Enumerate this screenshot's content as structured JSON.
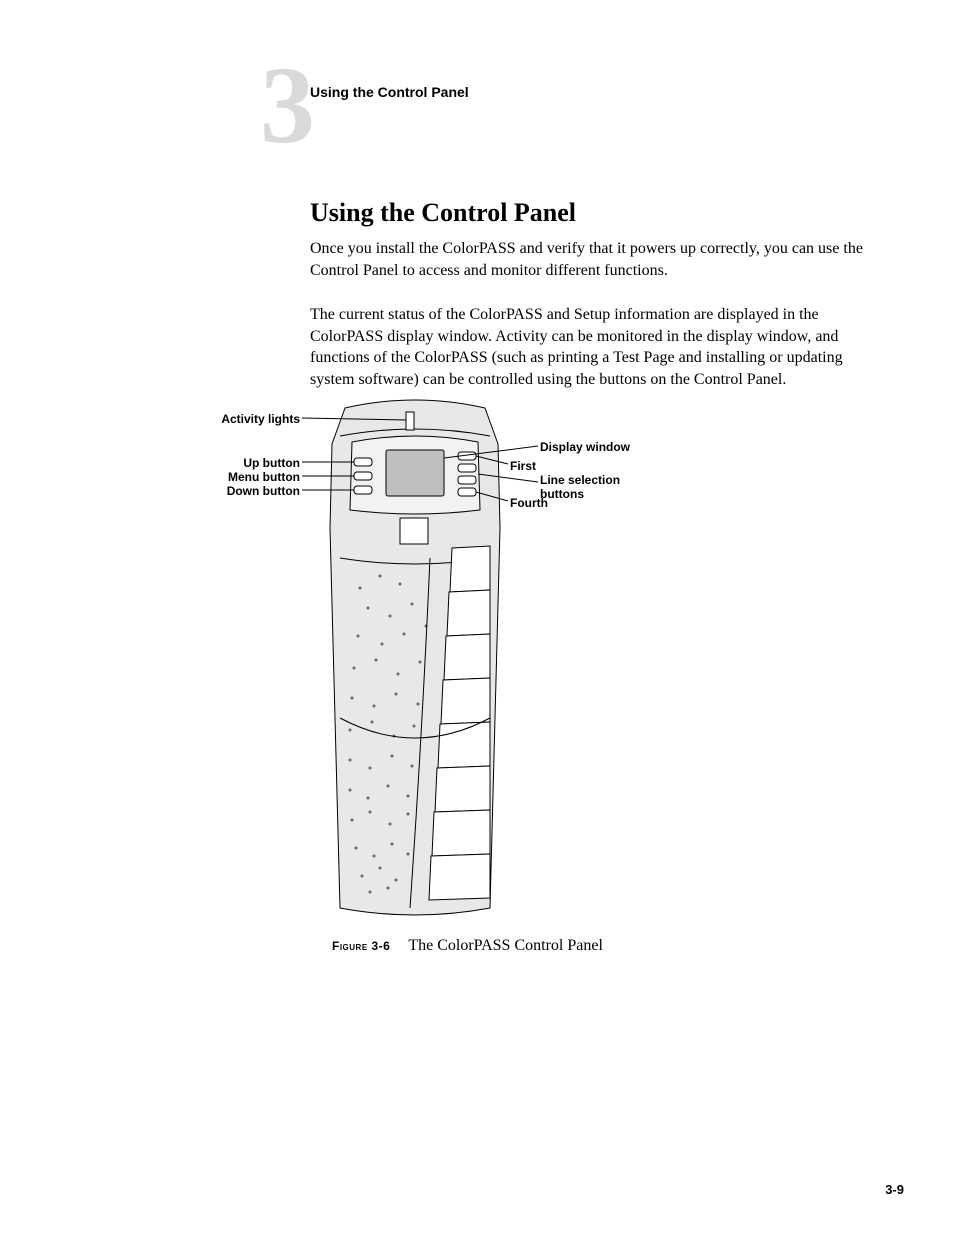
{
  "header": {
    "chapter_number": "3",
    "running_head": "Using the Control Panel"
  },
  "section": {
    "heading": "Using the Control Panel",
    "para1": "Once you install the ColorPASS and verify that it powers up correctly, you can use the Control Panel to access and monitor different functions.",
    "para2": "The current status of the ColorPASS and Setup information are displayed in the ColorPASS display window. Activity can be monitored in the display window, and functions of the ColorPASS (such as printing a Test Page and installing or updating system software) can be controlled using the buttons on the Control Panel."
  },
  "figure": {
    "labels": {
      "activity_lights": "Activity lights",
      "up_button": "Up button",
      "menu_button": "Menu button",
      "down_button": "Down button",
      "display_window": "Display window",
      "first": "First",
      "line_selection": "Line selection buttons",
      "fourth": "Fourth"
    },
    "caption_number": "Figure 3-6",
    "caption_title": "The ColorPASS Control Panel",
    "svg": {
      "stroke": "#000000",
      "stroke_width": 1,
      "body_fill": "#e8e8e8",
      "panel_fill": "#f2f2f2",
      "screen_fill": "#bfbfbf",
      "button_fill": "#ffffff",
      "dot_fill": "#666666",
      "slot_fill": "#ffffff",
      "leader_color": "#000000"
    }
  },
  "page_number": "3-9"
}
